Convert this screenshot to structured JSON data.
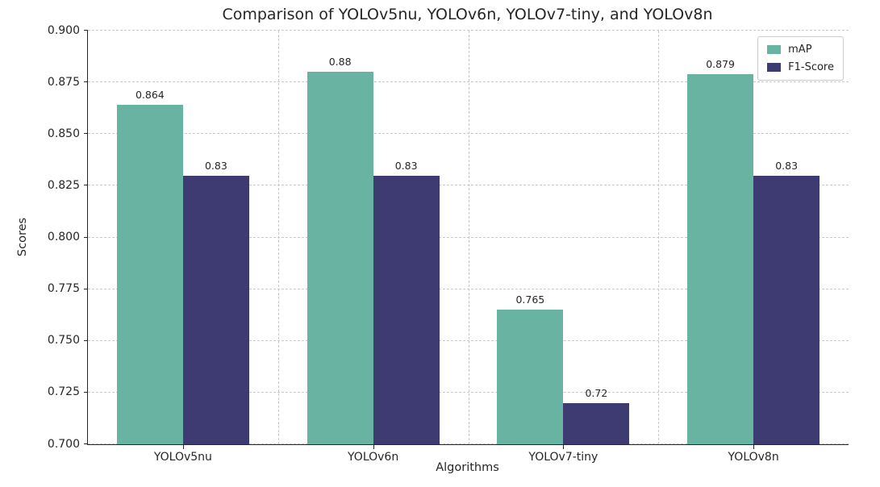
{
  "chart_data": {
    "type": "bar",
    "title": "Comparison of YOLOv5nu, YOLOv6n, YOLOv7-tiny, and YOLOv8n",
    "xlabel": "Algorithms",
    "ylabel": "Scores",
    "categories": [
      "YOLOv5nu",
      "YOLOv6n",
      "YOLOv7-tiny",
      "YOLOv8n"
    ],
    "series": [
      {
        "name": "mAP",
        "color": "#69b3a2",
        "values": [
          0.864,
          0.88,
          0.765,
          0.879
        ],
        "labels": [
          "0.864",
          "0.88",
          "0.765",
          "0.879"
        ]
      },
      {
        "name": "F1-Score",
        "color": "#3d3b72",
        "values": [
          0.83,
          0.83,
          0.72,
          0.83
        ],
        "labels": [
          "0.83",
          "0.83",
          "0.72",
          "0.83"
        ]
      }
    ],
    "ylim": [
      0.7,
      0.9
    ],
    "yticks": [
      0.7,
      0.725,
      0.75,
      0.775,
      0.8,
      0.825,
      0.85,
      0.875,
      0.9
    ],
    "ytick_labels": [
      "0.700",
      "0.725",
      "0.750",
      "0.775",
      "0.800",
      "0.825",
      "0.850",
      "0.875",
      "0.900"
    ],
    "grid": "dashed",
    "legend_position": "upper right"
  }
}
